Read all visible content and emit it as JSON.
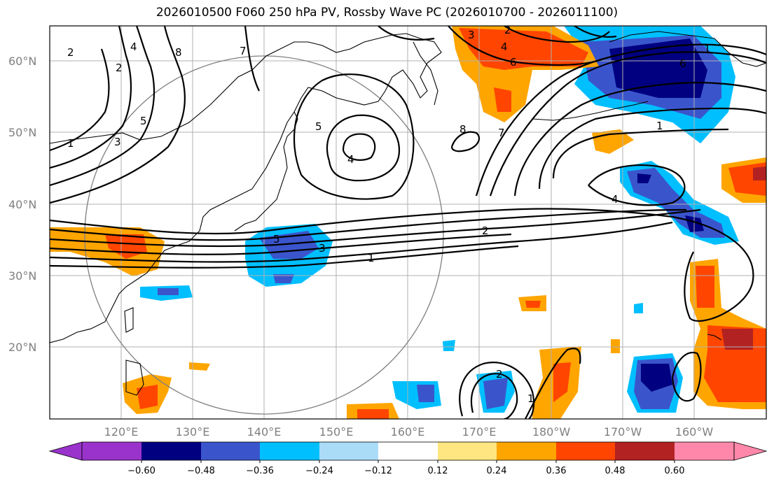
{
  "title": "2026010500 F060 250 hPa PV, Rossby Wave PC (2026010700 - 2026011100)",
  "map": {
    "lat_labels": [
      "60°N",
      "50°N",
      "40°N",
      "30°N",
      "20°N"
    ],
    "lon_labels": [
      "120°E",
      "130°E",
      "140°E",
      "150°E",
      "160°E",
      "170°E",
      "180°W",
      "170°W",
      "160°W"
    ],
    "lat_range": [
      10,
      65
    ],
    "lon_range": [
      110,
      210
    ],
    "contour_labels": [
      "2",
      "4",
      "8",
      "7",
      "2",
      "5",
      "3",
      "1",
      "5",
      "4",
      "8",
      "7",
      "3",
      "2",
      "4",
      "6",
      "6",
      "1",
      "4",
      "5",
      "3",
      "2",
      "1",
      "2",
      "1",
      "1"
    ],
    "colors": {
      "violet": "#9933cc",
      "navy": "#000080",
      "royal": "#3a55cc",
      "sky": "#00bfff",
      "light_blue": "#aadcf8",
      "white": "#ffffff",
      "light_yellow": "#ffe680",
      "orange": "#ffa500",
      "red_orange": "#ff4500",
      "dark_red": "#b22222",
      "pink": "#ff88aa",
      "grid": "#b0b0b0",
      "circle": "#808080"
    }
  },
  "colorbar": {
    "ticks": [
      "−0.60",
      "−0.48",
      "−0.36",
      "−0.24",
      "−0.12",
      "0.12",
      "0.24",
      "0.36",
      "0.48",
      "0.60"
    ],
    "colors": [
      "#9933cc",
      "#000080",
      "#3a55cc",
      "#00bfff",
      "#aadcf8",
      "#ffffff",
      "#ffe680",
      "#ffa500",
      "#ff4500",
      "#b22222",
      "#ff88aa"
    ]
  }
}
